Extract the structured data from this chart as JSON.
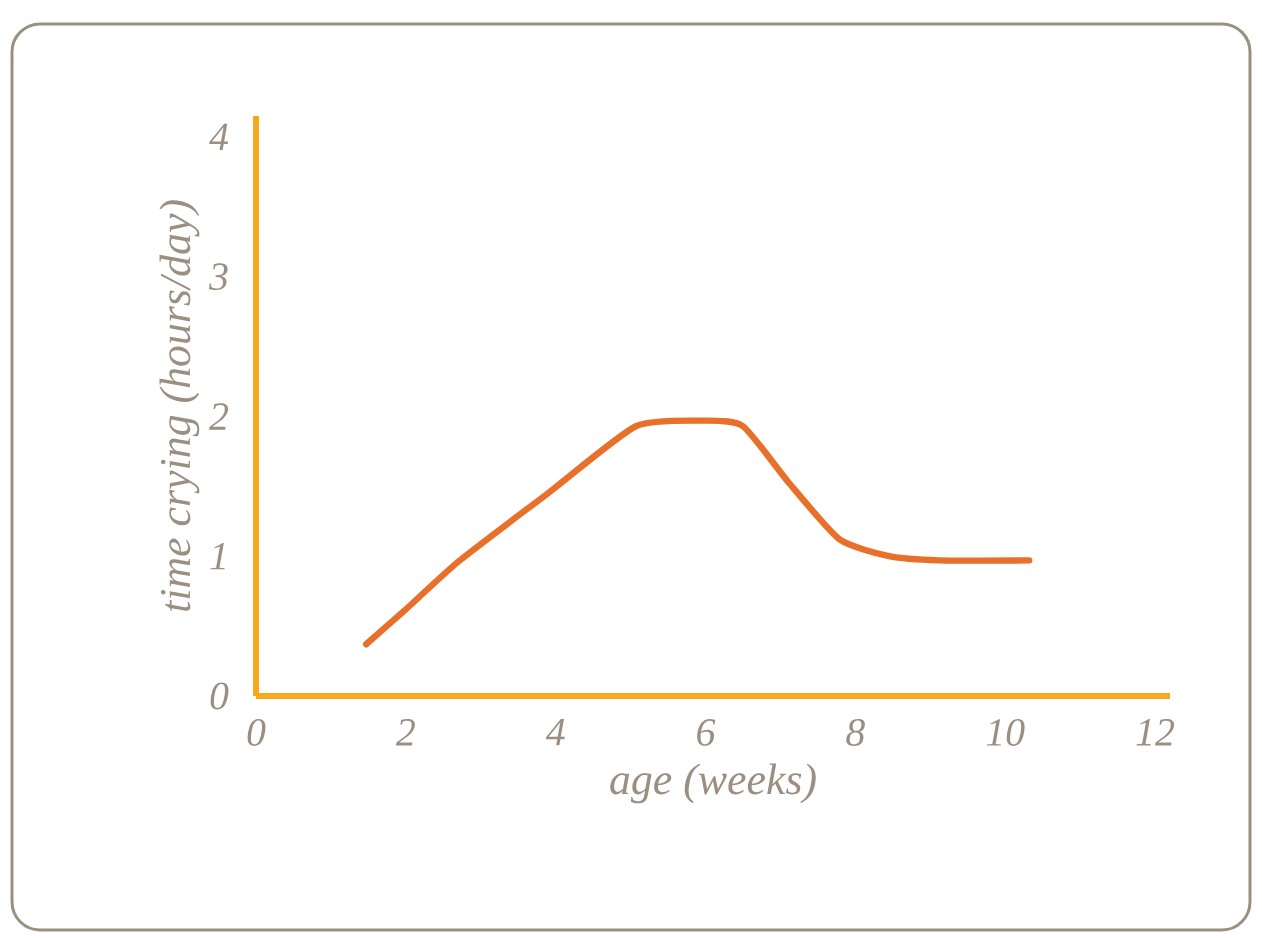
{
  "chart_data": {
    "type": "line",
    "xlabel": "age (weeks)",
    "ylabel": "time crying (hours/day)",
    "x": [
      1.47,
      2.0,
      2.72,
      3.92,
      5.07,
      5.97,
      6.5,
      7.12,
      7.79,
      8.45,
      9.12,
      10.32
    ],
    "series": [
      {
        "color": "#e8702a",
        "values": [
          0.37,
          0.62,
          0.97,
          1.46,
          1.93,
          1.97,
          1.93,
          1.52,
          1.12,
          1.0,
          0.97,
          0.97
        ]
      }
    ],
    "xlim": [
      0,
      12.2
    ],
    "ylim": [
      0,
      4.15
    ],
    "xticks": [
      0,
      2,
      4,
      6,
      8,
      10,
      12
    ],
    "yticks": [
      0,
      1,
      2,
      3,
      4
    ]
  }
}
